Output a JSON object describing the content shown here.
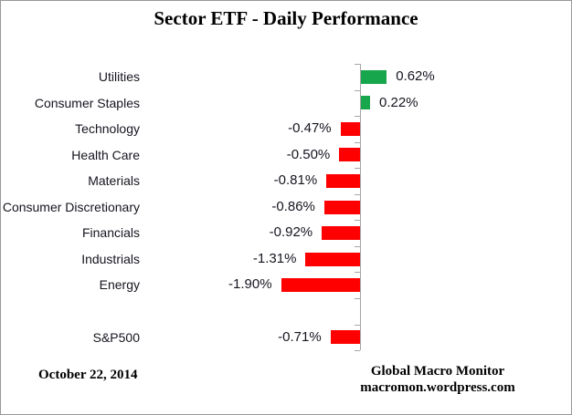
{
  "title": "Sector ETF - Daily Performance",
  "chart_data": {
    "type": "bar",
    "orientation": "horizontal",
    "title": "Sector ETF - Daily Performance",
    "categories": [
      "Utilities",
      "Consumer Staples",
      "Technology",
      "Health Care",
      "Materials",
      "Consumer Discretionary",
      "Financials",
      "Industrials",
      "Energy",
      "",
      "S&P500"
    ],
    "values": [
      0.62,
      0.22,
      -0.47,
      -0.5,
      -0.81,
      -0.86,
      -0.92,
      -1.31,
      -1.9,
      null,
      -0.71
    ],
    "labels": [
      "0.62%",
      "0.22%",
      "-0.47%",
      "-0.50%",
      "-0.81%",
      "-0.86%",
      "-0.92%",
      "-1.31%",
      "-1.90%",
      "",
      "-0.71%"
    ],
    "xlabel": "",
    "ylabel": "",
    "xlim": [
      -2.2,
      1.1
    ],
    "grid": false,
    "legend": false,
    "value_axis_visible": false,
    "category_axis_ticks": "outside",
    "data_label_position": "outside-end",
    "colors": {
      "positive": "#17A64C",
      "negative": "#FF0000",
      "axis": "#A6A6A6",
      "label_text": "#15151f",
      "border": "#999999"
    }
  },
  "footer": {
    "date": "October 22, 2014",
    "credit_line1": "Global Macro Monitor",
    "credit_line2": "macromon.wordpress.com"
  }
}
